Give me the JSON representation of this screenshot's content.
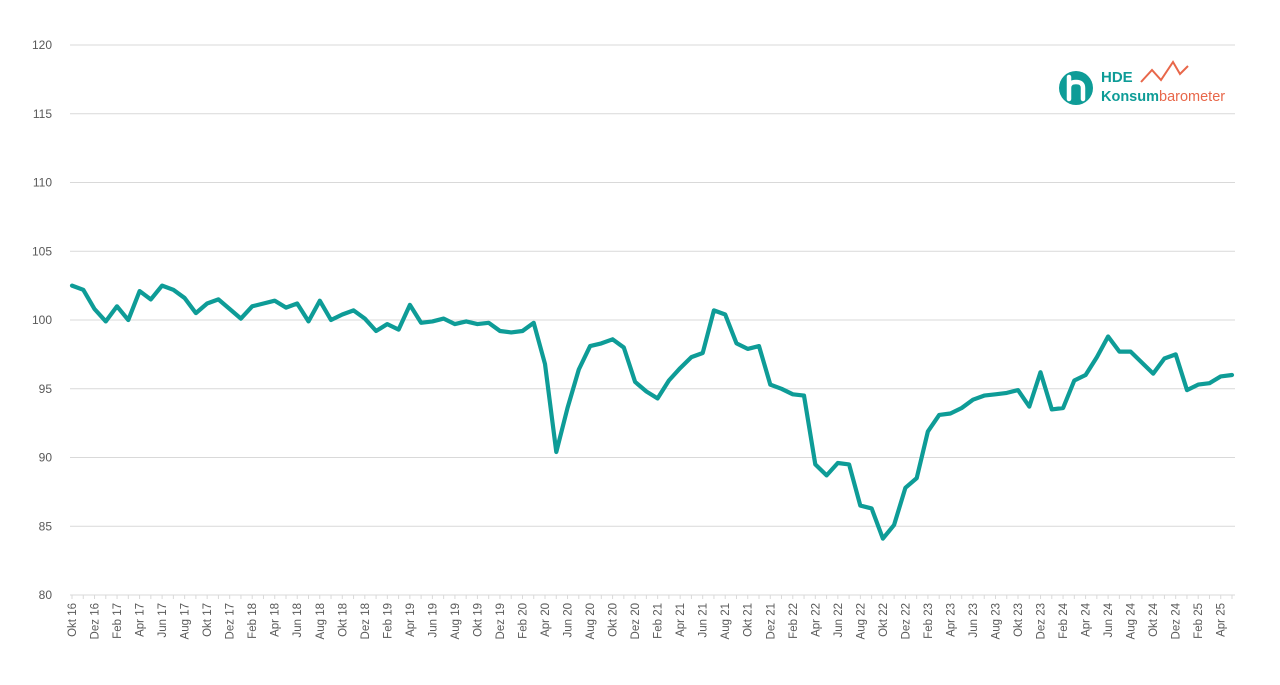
{
  "chart_data": {
    "type": "line",
    "title": "",
    "xlabel": "",
    "ylabel": "",
    "ylim": [
      80,
      120
    ],
    "yticks": [
      80,
      85,
      90,
      95,
      100,
      105,
      110,
      115,
      120
    ],
    "grid": true,
    "x": [
      "Okt 16",
      "Nov 16",
      "Dez 16",
      "Jan 17",
      "Feb 17",
      "Mär 17",
      "Apr 17",
      "Mai 17",
      "Jun 17",
      "Jul 17",
      "Aug 17",
      "Sep 17",
      "Okt 17",
      "Nov 17",
      "Dez 17",
      "Jan 18",
      "Feb 18",
      "Mär 18",
      "Apr 18",
      "Mai 18",
      "Jun 18",
      "Jul 18",
      "Aug 18",
      "Sep 18",
      "Okt 18",
      "Nov 18",
      "Dez 18",
      "Jan 19",
      "Feb 19",
      "Mär 19",
      "Apr 19",
      "Mai 19",
      "Jun 19",
      "Jul 19",
      "Aug 19",
      "Sep 19",
      "Okt 19",
      "Nov 19",
      "Dez 19",
      "Jan 20",
      "Feb 20",
      "Mär 20",
      "Apr 20",
      "Mai 20",
      "Jun 20",
      "Jul 20",
      "Aug 20",
      "Sep 20",
      "Okt 20",
      "Nov 20",
      "Dez 20",
      "Jan 21",
      "Feb 21",
      "Mär 21",
      "Apr 21",
      "Mai 21",
      "Jun 21",
      "Jul 21",
      "Aug 21",
      "Sep 21",
      "Okt 21",
      "Nov 21",
      "Dez 21",
      "Jan 22",
      "Feb 22",
      "Mär 22",
      "Apr 22",
      "Mai 22",
      "Jun 22",
      "Jul 22",
      "Aug 22",
      "Sep 22",
      "Okt 22",
      "Nov 22",
      "Dez 22",
      "Jan 23",
      "Feb 23",
      "Mär 23",
      "Apr 23",
      "Mai 23",
      "Jun 23",
      "Jul 23",
      "Aug 23",
      "Sep 23",
      "Okt 23",
      "Nov 23",
      "Dez 23",
      "Jan 24",
      "Feb 24",
      "Mär 24",
      "Apr 24",
      "Mai 24",
      "Jun 24",
      "Jul 24",
      "Aug 24",
      "Sep 24",
      "Okt 24",
      "Nov 24",
      "Dez 24",
      "Jan 25",
      "Feb 25",
      "Mär 25",
      "Apr 25",
      "Mai 25"
    ],
    "x_tick_labels": [
      "Okt 16",
      "Dez 16",
      "Feb 17",
      "Apr 17",
      "Jun 17",
      "Aug 17",
      "Okt 17",
      "Dez 17",
      "Feb 18",
      "Apr 18",
      "Jun 18",
      "Aug 18",
      "Okt 18",
      "Dez 18",
      "Feb 19",
      "Apr 19",
      "Jun 19",
      "Aug 19",
      "Okt 19",
      "Dez 19",
      "Feb 20",
      "Apr 20",
      "Jun 20",
      "Aug 20",
      "Okt 20",
      "Dez 20",
      "Feb 21",
      "Apr 21",
      "Jun 21",
      "Aug 21",
      "Okt 21",
      "Dez 21",
      "Feb 22",
      "Apr 22",
      "Jun 22",
      "Aug 22",
      "Okt 22",
      "Dez 22",
      "Feb 23",
      "Apr 23",
      "Jun 23",
      "Aug 23",
      "Okt 23",
      "Dez 23",
      "Feb 24",
      "Apr 24",
      "Jun 24",
      "Aug 24",
      "Okt 24",
      "Dez 24",
      "Feb 25",
      "Apr 25"
    ],
    "series": [
      {
        "color": "#0e9c97",
        "values": [
          102.5,
          102.2,
          100.8,
          99.9,
          101.0,
          100.0,
          102.1,
          101.5,
          102.5,
          102.2,
          101.6,
          100.5,
          101.2,
          101.5,
          100.8,
          100.1,
          101.0,
          101.2,
          101.4,
          100.9,
          101.2,
          99.9,
          101.4,
          100.0,
          100.4,
          100.7,
          100.1,
          99.2,
          99.7,
          99.3,
          101.1,
          99.8,
          99.9,
          100.1,
          99.7,
          99.9,
          99.7,
          99.8,
          99.2,
          99.1,
          99.2,
          99.8,
          96.8,
          90.4,
          93.6,
          96.4,
          98.1,
          98.3,
          98.6,
          98.0,
          95.5,
          94.8,
          94.3,
          95.6,
          96.5,
          97.3,
          97.6,
          100.7,
          100.4,
          98.3,
          97.9,
          98.1,
          95.3,
          95.0,
          94.6,
          94.5,
          89.5,
          88.7,
          89.6,
          89.5,
          86.5,
          86.3,
          84.1,
          85.1,
          87.8,
          88.5,
          91.9,
          93.1,
          93.2,
          93.6,
          94.2,
          94.5,
          94.6,
          94.7,
          94.9,
          93.7,
          96.2,
          93.5,
          93.6,
          95.6,
          96.0,
          97.3,
          98.8,
          97.7,
          97.7,
          96.9,
          96.1,
          97.2,
          97.5,
          94.9,
          95.3,
          95.4,
          95.9,
          96.0
        ]
      }
    ]
  },
  "logo": {
    "brand": "HDE",
    "word_strong": "Konsum",
    "word_light": "barometer",
    "teal": "#0e9c97",
    "orange": "#e8674a"
  }
}
